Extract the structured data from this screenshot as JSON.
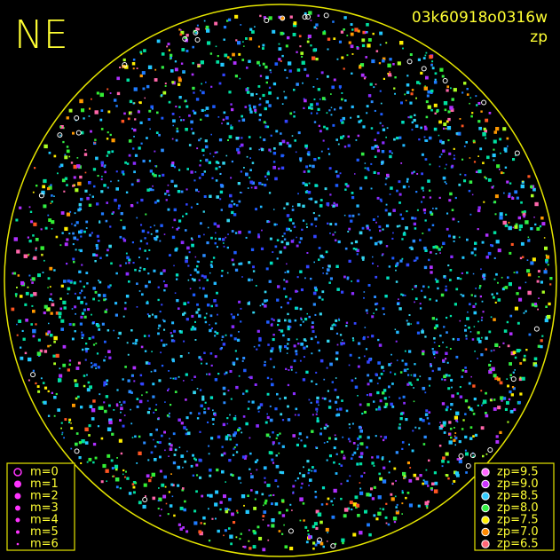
{
  "header": {
    "direction": "NE",
    "image_id": "03k60918o0316w",
    "mode": "zp"
  },
  "magnitude_legend": [
    "m=0",
    "m=1",
    "m=2",
    "m=3",
    "m=4",
    "m=5",
    "m=6"
  ],
  "zp_legend": [
    "zp=9.5",
    "zp=9.0",
    "zp=8.5",
    "zp=8.0",
    "zp=7.5",
    "zp=7.0",
    "zp=6.5"
  ]
}
